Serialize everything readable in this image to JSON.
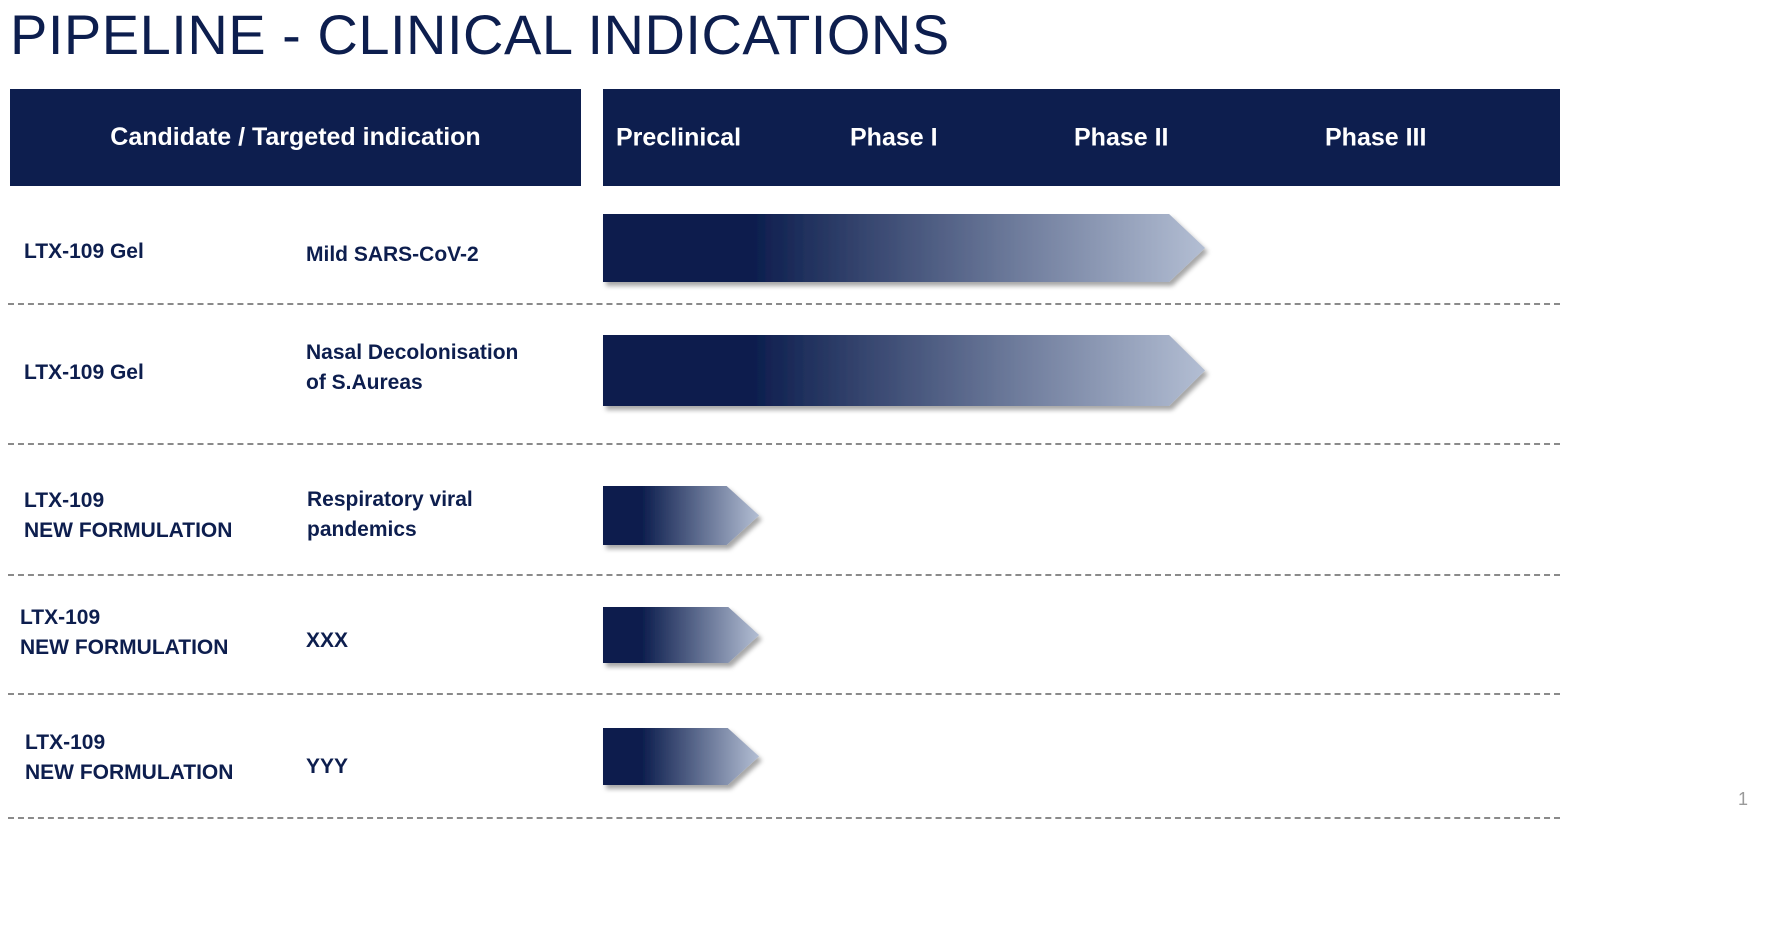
{
  "title": "PIPELINE - CLINICAL INDICATIONS",
  "header": {
    "candidate_label": "Candidate / Targeted indication",
    "phases": [
      "Preclinical",
      "Phase I",
      "Phase II",
      "Phase III"
    ]
  },
  "rows": [
    {
      "candidate": "LTX-109 Gel",
      "indication": "Mild SARS-CoV-2"
    },
    {
      "candidate": "LTX-109 Gel",
      "indication": "Nasal Decolonisation\nof S.Aureas"
    },
    {
      "candidate": "LTX-109\nNEW FORMULATION",
      "indication": "Respiratory viral\npandemics"
    },
    {
      "candidate": "LTX-109\nNEW FORMULATION",
      "indication": "XXX"
    },
    {
      "candidate": "LTX-109\nNEW FORMULATION",
      "indication": "YYY"
    }
  ],
  "page_number": "1",
  "colors": {
    "navy": "#0d1e4e",
    "bar_light": "#aeb9cf",
    "divider": "#8a8a8a"
  },
  "chart_data": {
    "type": "bar",
    "orientation": "horizontal",
    "title": "PIPELINE - CLINICAL INDICATIONS",
    "categories": [
      "Preclinical",
      "Phase I",
      "Phase II",
      "Phase III"
    ],
    "series": [
      {
        "name": "LTX-109 Gel — Mild SARS-CoV-2",
        "stage_reached": 2.7
      },
      {
        "name": "LTX-109 Gel — Nasal Decolonisation of S.Aureas",
        "stage_reached": 2.7
      },
      {
        "name": "LTX-109 NEW FORMULATION — Respiratory viral pandemics",
        "stage_reached": 0.7
      },
      {
        "name": "LTX-109 NEW FORMULATION — XXX",
        "stage_reached": 0.7
      },
      {
        "name": "LTX-109 NEW FORMULATION — YYY",
        "stage_reached": 0.7
      }
    ],
    "xlim": [
      0,
      4
    ],
    "stage_unit": "phases completed (0 = start of Preclinical, 4 = end of Phase III)"
  }
}
